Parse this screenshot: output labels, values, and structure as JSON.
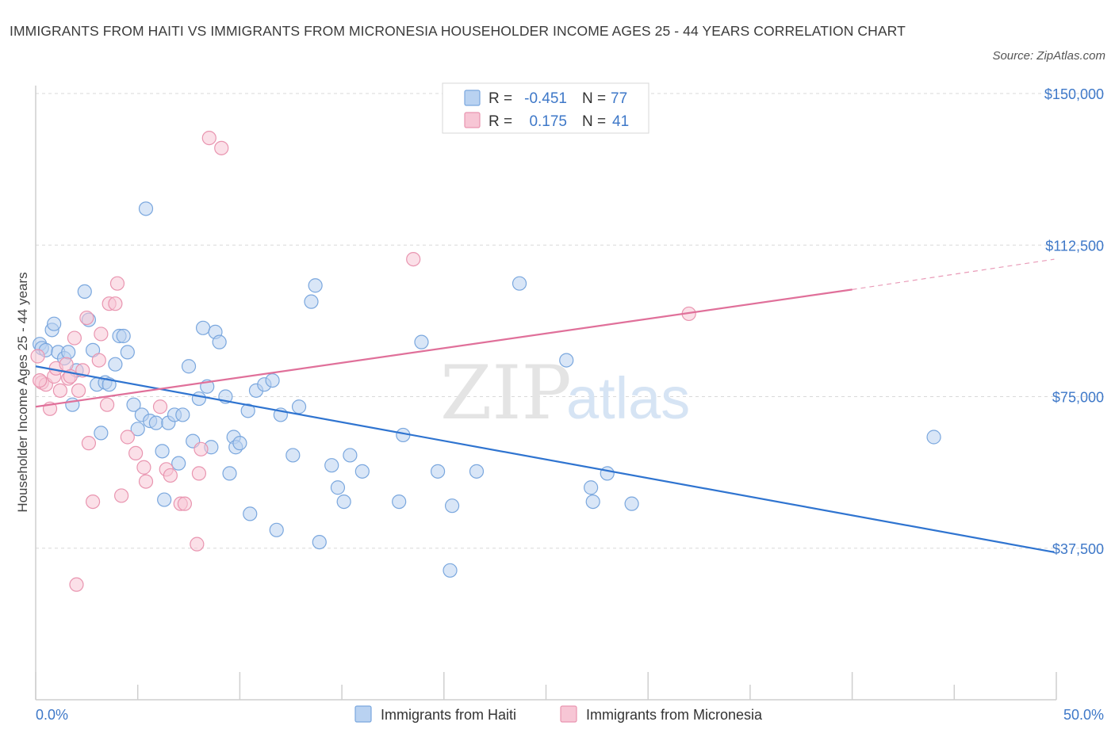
{
  "title": "IMMIGRANTS FROM HAITI VS IMMIGRANTS FROM MICRONESIA HOUSEHOLDER INCOME AGES 25 - 44 YEARS CORRELATION CHART",
  "source": "Source: ZipAtlas.com",
  "watermark": {
    "zip": "ZIP",
    "atlas": "atlas"
  },
  "colors": {
    "haiti_fill": "#b9d2f1",
    "haiti_stroke": "#7aa7de",
    "haiti_line": "#2f74d0",
    "micronesia_fill": "#f7c6d5",
    "micronesia_stroke": "#e995b0",
    "micronesia_line": "#e0709a",
    "tick": "#3e78c8",
    "grid": "#d9d9d9"
  },
  "legend": {
    "rows": [
      {
        "r_label": "R =",
        "r_value": "-0.451",
        "n_label": "N =",
        "n_value": "77"
      },
      {
        "r_label": "R =",
        "r_value": "0.175",
        "n_label": "N =",
        "n_value": "41"
      }
    ]
  },
  "chart_data": {
    "type": "scatter",
    "title": "IMMIGRANTS FROM HAITI VS IMMIGRANTS FROM MICRONESIA HOUSEHOLDER INCOME AGES 25 - 44 YEARS CORRELATION CHART",
    "xlabel": "",
    "ylabel": "Householder Income Ages 25 - 44 years",
    "xlim": [
      0,
      50
    ],
    "ylim": [
      0,
      152000
    ],
    "x_tick_labels": [
      "0.0%",
      "50.0%"
    ],
    "y_ticks": [
      37500,
      75000,
      112500,
      150000
    ],
    "y_tick_labels": [
      "$37,500",
      "$75,000",
      "$112,500",
      "$150,000"
    ],
    "grid": true,
    "series": [
      {
        "name": "Immigrants from Haiti",
        "r": -0.451,
        "n": 77,
        "trend": {
          "x": [
            0,
            49.9
          ],
          "y": [
            82500,
            36500
          ]
        },
        "points": [
          [
            0.2,
            88000
          ],
          [
            0.3,
            87000
          ],
          [
            0.5,
            86500
          ],
          [
            0.8,
            91500
          ],
          [
            0.9,
            93000
          ],
          [
            1.1,
            86000
          ],
          [
            1.4,
            84500
          ],
          [
            1.6,
            86000
          ],
          [
            1.8,
            73000
          ],
          [
            2.0,
            81500
          ],
          [
            2.4,
            101000
          ],
          [
            2.6,
            94000
          ],
          [
            2.8,
            86500
          ],
          [
            3.0,
            78000
          ],
          [
            3.2,
            66000
          ],
          [
            3.4,
            78500
          ],
          [
            3.6,
            78000
          ],
          [
            3.9,
            83000
          ],
          [
            4.1,
            90000
          ],
          [
            4.3,
            90000
          ],
          [
            4.5,
            86000
          ],
          [
            4.8,
            73000
          ],
          [
            5.0,
            67000
          ],
          [
            5.2,
            70500
          ],
          [
            5.4,
            121500
          ],
          [
            5.6,
            69000
          ],
          [
            5.9,
            68500
          ],
          [
            6.2,
            61500
          ],
          [
            6.3,
            49500
          ],
          [
            6.5,
            68500
          ],
          [
            6.8,
            70500
          ],
          [
            7.0,
            58500
          ],
          [
            7.2,
            70500
          ],
          [
            7.5,
            82500
          ],
          [
            7.7,
            64000
          ],
          [
            8.0,
            74500
          ],
          [
            8.2,
            92000
          ],
          [
            8.4,
            77500
          ],
          [
            8.6,
            62500
          ],
          [
            8.8,
            91000
          ],
          [
            9.0,
            88500
          ],
          [
            9.3,
            75000
          ],
          [
            9.5,
            56000
          ],
          [
            9.7,
            65000
          ],
          [
            9.8,
            62500
          ],
          [
            10.0,
            63500
          ],
          [
            10.4,
            71500
          ],
          [
            10.5,
            46000
          ],
          [
            10.8,
            76500
          ],
          [
            11.2,
            78000
          ],
          [
            11.6,
            79000
          ],
          [
            11.8,
            42000
          ],
          [
            12.0,
            70500
          ],
          [
            12.6,
            60500
          ],
          [
            12.9,
            72500
          ],
          [
            13.5,
            98500
          ],
          [
            13.7,
            102500
          ],
          [
            13.9,
            39000
          ],
          [
            14.5,
            58000
          ],
          [
            14.8,
            52500
          ],
          [
            15.1,
            49000
          ],
          [
            15.4,
            60500
          ],
          [
            16.0,
            56500
          ],
          [
            17.8,
            49000
          ],
          [
            18.0,
            65500
          ],
          [
            18.9,
            88500
          ],
          [
            19.7,
            56500
          ],
          [
            20.3,
            32000
          ],
          [
            20.4,
            48000
          ],
          [
            21.6,
            56500
          ],
          [
            23.7,
            103000
          ],
          [
            26.0,
            84000
          ],
          [
            27.2,
            52500
          ],
          [
            27.3,
            49000
          ],
          [
            28.0,
            56000
          ],
          [
            29.2,
            48500
          ],
          [
            44.0,
            65000
          ]
        ]
      },
      {
        "name": "Immigrants from Micronesia",
        "r": 0.175,
        "n": 41,
        "trend": {
          "x": [
            0,
            40
          ],
          "y": [
            72500,
            101500
          ]
        },
        "trend_dashed": {
          "x": [
            40,
            49.9
          ],
          "y": [
            101500,
            109000
          ]
        },
        "points": [
          [
            0.1,
            85000
          ],
          [
            0.3,
            78500
          ],
          [
            0.5,
            78000
          ],
          [
            0.7,
            72000
          ],
          [
            0.9,
            80000
          ],
          [
            1.0,
            82000
          ],
          [
            1.2,
            76500
          ],
          [
            1.5,
            83000
          ],
          [
            1.6,
            79500
          ],
          [
            1.7,
            80000
          ],
          [
            1.9,
            89500
          ],
          [
            2.0,
            28500
          ],
          [
            2.1,
            76500
          ],
          [
            2.3,
            81500
          ],
          [
            2.5,
            94500
          ],
          [
            2.6,
            63500
          ],
          [
            2.8,
            49000
          ],
          [
            3.1,
            84000
          ],
          [
            3.2,
            90500
          ],
          [
            3.5,
            73000
          ],
          [
            3.6,
            98000
          ],
          [
            3.9,
            98000
          ],
          [
            4.0,
            103000
          ],
          [
            4.2,
            50500
          ],
          [
            4.5,
            65000
          ],
          [
            4.9,
            61000
          ],
          [
            5.3,
            57500
          ],
          [
            5.4,
            54000
          ],
          [
            6.1,
            72500
          ],
          [
            6.4,
            57000
          ],
          [
            6.6,
            55500
          ],
          [
            7.1,
            48500
          ],
          [
            7.3,
            48500
          ],
          [
            7.9,
            38500
          ],
          [
            8.0,
            56000
          ],
          [
            8.1,
            62000
          ],
          [
            8.5,
            139000
          ],
          [
            9.1,
            136500
          ],
          [
            18.5,
            109000
          ],
          [
            32.0,
            95500
          ],
          [
            0.2,
            79000
          ]
        ]
      }
    ]
  },
  "bottom_legend": [
    "Immigrants from Haiti",
    "Immigrants from Micronesia"
  ]
}
